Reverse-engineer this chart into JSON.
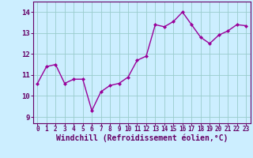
{
  "x": [
    0,
    1,
    2,
    3,
    4,
    5,
    6,
    7,
    8,
    9,
    10,
    11,
    12,
    13,
    14,
    15,
    16,
    17,
    18,
    19,
    20,
    21,
    22,
    23
  ],
  "y": [
    10.6,
    11.4,
    11.5,
    10.6,
    10.8,
    10.8,
    9.3,
    10.2,
    10.5,
    10.6,
    10.9,
    11.7,
    11.9,
    13.4,
    13.3,
    13.55,
    14.0,
    13.4,
    12.8,
    12.5,
    12.9,
    13.1,
    13.4,
    13.35
  ],
  "line_color": "#990099",
  "marker": "D",
  "marker_size": 2.0,
  "bg_color": "#cceeff",
  "grid_color": "#99cccc",
  "xlabel": "Windchill (Refroidissement éolien,°C)",
  "xlabel_fontsize": 7.0,
  "xtick_labels": [
    "0",
    "1",
    "2",
    "3",
    "4",
    "5",
    "6",
    "7",
    "8",
    "9",
    "10",
    "11",
    "12",
    "13",
    "14",
    "15",
    "16",
    "17",
    "18",
    "19",
    "20",
    "21",
    "22",
    "23"
  ],
  "ytick_labels": [
    "9",
    "10",
    "11",
    "12",
    "13",
    "14"
  ],
  "ytick_vals": [
    9,
    10,
    11,
    12,
    13,
    14
  ],
  "ylim": [
    8.7,
    14.5
  ],
  "xlim": [
    -0.5,
    23.5
  ],
  "tick_color": "#660066",
  "label_color": "#660066",
  "axis_color": "#660066",
  "linewidth": 1.0,
  "xtick_fontsize": 5.5,
  "ytick_fontsize": 6.5
}
